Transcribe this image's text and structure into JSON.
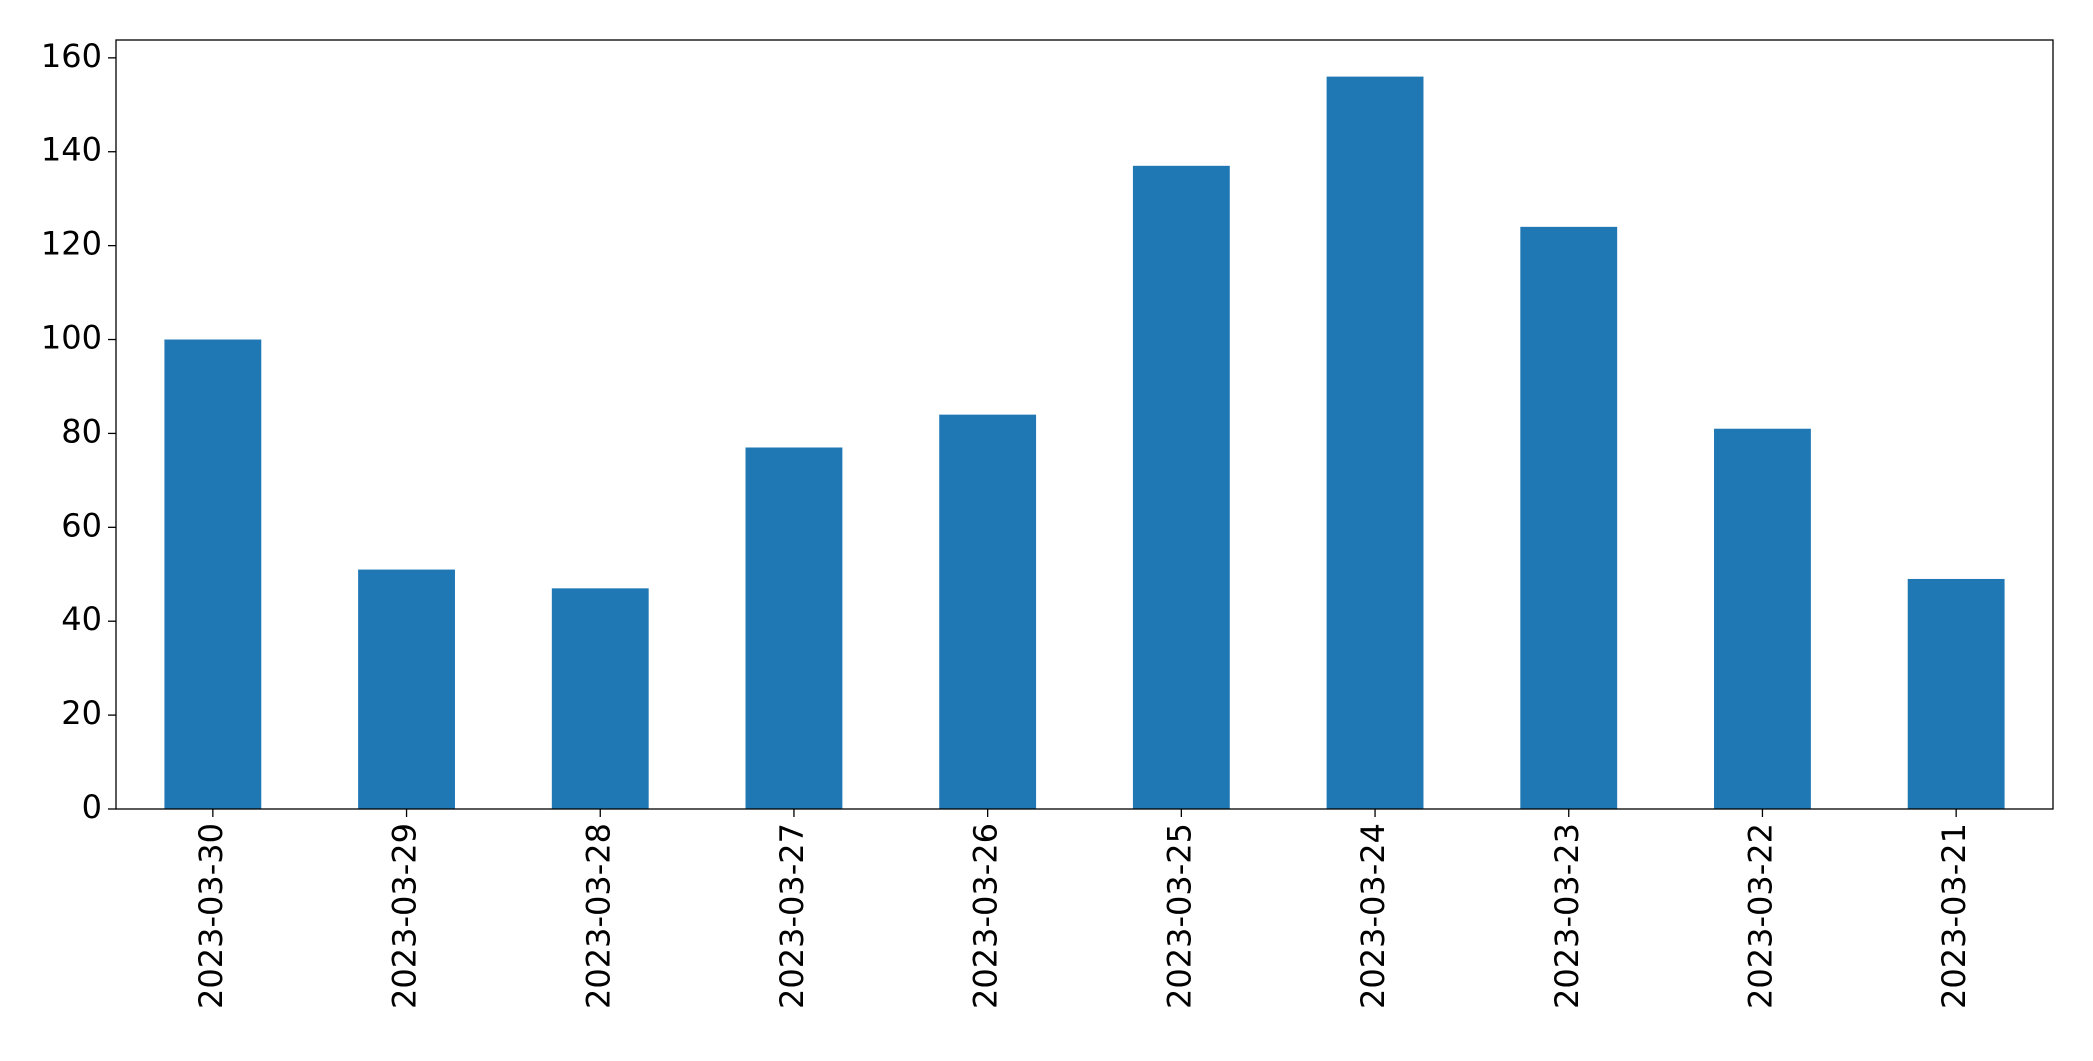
{
  "chart_data": {
    "type": "bar",
    "categories": [
      "2023-03-30",
      "2023-03-29",
      "2023-03-28",
      "2023-03-27",
      "2023-03-26",
      "2023-03-25",
      "2023-03-24",
      "2023-03-23",
      "2023-03-22",
      "2023-03-21"
    ],
    "values": [
      100,
      51,
      47,
      77,
      84,
      137,
      156,
      124,
      81,
      49
    ],
    "color": "#1f77b4",
    "ylim": [
      0,
      163.8
    ],
    "yticks": [
      0,
      20,
      40,
      60,
      80,
      100,
      120,
      140,
      160
    ],
    "grid": false
  }
}
